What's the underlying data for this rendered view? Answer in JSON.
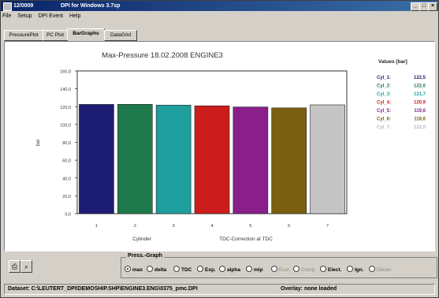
{
  "window": {
    "title_id": "12/0009",
    "title_app": "DPI for Windows 3.7sp"
  },
  "menu": [
    "File",
    "Setup",
    "DPI Event",
    "Help"
  ],
  "tabs": [
    "PressurePlot",
    "PC Plot",
    "BarGraphs",
    "DataGrid"
  ],
  "active_tab": 2,
  "chart_data": {
    "type": "bar",
    "title": "Max-Pressure  18.02.2008  ENGINE3",
    "categories": [
      "1",
      "2",
      "3",
      "4",
      "5",
      "6",
      "7"
    ],
    "values": [
      122.5,
      122.6,
      121.7,
      120.9,
      119.6,
      118.6,
      122.0
    ],
    "colors": [
      "#1c1c74",
      "#1e7a4c",
      "#1f9e9e",
      "#cc1c1c",
      "#8a1e8a",
      "#7a6010",
      "#c4c4c4"
    ],
    "ylim": [
      0,
      160
    ],
    "yticks": [
      "0,0",
      "20,0",
      "40,0",
      "60,0",
      "80,0",
      "100,0",
      "120,0",
      "140,0",
      "160,0"
    ],
    "ylabel": "bar",
    "xlabel": "Cylinder",
    "note": "TDC-Correction at TDC",
    "legend_title": "Values [bar]",
    "legend": [
      {
        "name": "Cyl_1:",
        "value": "122,5",
        "color": "#1c1c74"
      },
      {
        "name": "Cyl_2:",
        "value": "122,6",
        "color": "#1e7a4c"
      },
      {
        "name": "Cyl_3:",
        "value": "121,7",
        "color": "#1f9e9e"
      },
      {
        "name": "Cyl_4:",
        "value": "120,9",
        "color": "#cc1c1c"
      },
      {
        "name": "Cyl_5:",
        "value": "119,6",
        "color": "#8a1e8a"
      },
      {
        "name": "Cyl_6:",
        "value": "118,6",
        "color": "#7a6010"
      },
      {
        "name": "Cyl_7:",
        "value": "122,0",
        "color": "#b8b8b8"
      }
    ],
    "grid": false,
    "legend_position": "right"
  },
  "press_graph": {
    "label": "Press.-Graph",
    "options": [
      {
        "label": "max",
        "selected": true,
        "enabled": true
      },
      {
        "label": "delta",
        "selected": false,
        "enabled": true
      },
      {
        "label": "TDC",
        "selected": false,
        "enabled": true
      },
      {
        "label": "Exp.",
        "selected": false,
        "enabled": true
      },
      {
        "label": "alpha",
        "selected": false,
        "enabled": true
      },
      {
        "label": "mip",
        "selected": false,
        "enabled": true
      },
      {
        "label": "Excl.",
        "selected": false,
        "enabled": false
      },
      {
        "label": "Comp.",
        "selected": false,
        "enabled": false
      },
      {
        "label": "Elect.",
        "selected": false,
        "enabled": true
      },
      {
        "label": "Ign.",
        "selected": false,
        "enabled": true
      },
      {
        "label": "Diesel",
        "selected": false,
        "enabled": false
      }
    ]
  },
  "status": {
    "dataset_label": "Dataset:",
    "dataset_value": "C:\\LEUTERT_DPI\\DEMOSHIP.SHP\\ENGINE3.ENG\\0375_pmc.DPI",
    "overlay_label": "Overlay:",
    "overlay_value": "none loaded"
  },
  "icons": {
    "print": "printer-icon",
    "zoom": "zoom-icon"
  }
}
